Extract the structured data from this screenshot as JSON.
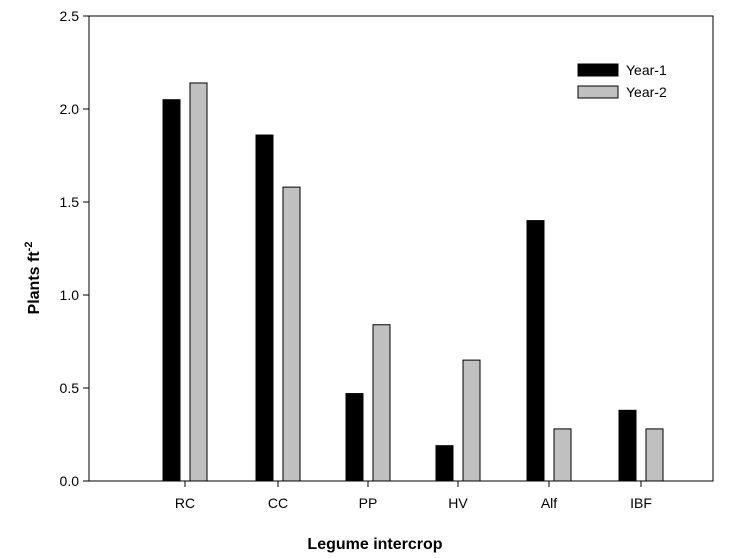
{
  "chart_data": {
    "type": "bar",
    "title": "",
    "xlabel": "Legume intercrop",
    "ylabel": "Plants ft",
    "ylabel_superscript": "-2",
    "categories": [
      "RC",
      "CC",
      "PP",
      "HV",
      "Alf",
      "IBF"
    ],
    "ylim": [
      0,
      2.5
    ],
    "yticks": [
      "0.0",
      "0.5",
      "1.0",
      "1.5",
      "2.0",
      "2.5"
    ],
    "grid": false,
    "legend_position": "top-right",
    "series": [
      {
        "name": "Year-1",
        "color": "#000000",
        "values": [
          2.05,
          1.86,
          0.47,
          0.19,
          1.4,
          0.38
        ]
      },
      {
        "name": "Year-2",
        "color": "#c0c0c0",
        "values": [
          2.14,
          1.58,
          0.84,
          0.65,
          0.28,
          0.28
        ]
      }
    ]
  }
}
